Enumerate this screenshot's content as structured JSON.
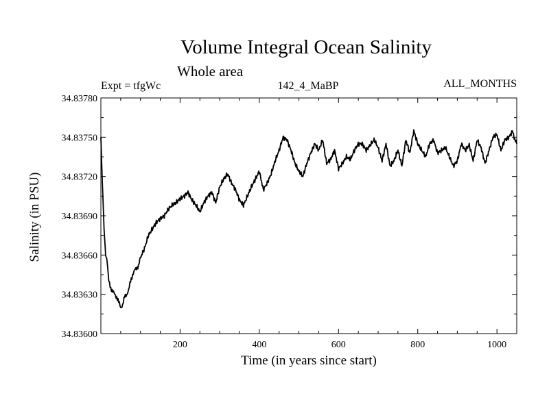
{
  "header": {
    "title": "Volume Integral Ocean Salinity",
    "subtitle": "Whole area",
    "experiment": "Expt = tfgWc",
    "run": "142_4_MaBP",
    "months": "ALL_MONTHS"
  },
  "chart_data": {
    "type": "line",
    "title": "Volume Integral Ocean Salinity",
    "subtitle": "Whole area",
    "xlabel": "Time (in years since start)",
    "ylabel": "Salinity (in PSU)",
    "xlim": [
      0,
      1050
    ],
    "ylim": [
      34.836,
      34.8378
    ],
    "xticks": [
      200,
      400,
      600,
      800,
      1000
    ],
    "yticks": [
      34.836,
      34.8363,
      34.8366,
      34.8369,
      34.8372,
      34.8375,
      34.8378
    ],
    "ytick_labels": [
      "34.83600",
      "34.83630",
      "34.83660",
      "34.83690",
      "34.83720",
      "34.83750",
      "34.83780"
    ],
    "grid": false,
    "series": [
      {
        "name": "salinity",
        "x": [
          0,
          2,
          5,
          8,
          12,
          16,
          20,
          25,
          30,
          35,
          40,
          45,
          50,
          55,
          60,
          65,
          70,
          75,
          80,
          85,
          90,
          95,
          100,
          110,
          120,
          130,
          140,
          150,
          160,
          170,
          180,
          190,
          200,
          210,
          220,
          230,
          240,
          250,
          260,
          270,
          280,
          290,
          300,
          310,
          320,
          330,
          340,
          350,
          360,
          370,
          380,
          390,
          400,
          410,
          420,
          430,
          440,
          450,
          460,
          470,
          480,
          490,
          500,
          510,
          520,
          530,
          540,
          550,
          560,
          570,
          580,
          590,
          600,
          610,
          620,
          630,
          640,
          650,
          660,
          670,
          680,
          690,
          700,
          710,
          720,
          730,
          740,
          750,
          760,
          770,
          780,
          790,
          800,
          810,
          820,
          830,
          840,
          850,
          860,
          870,
          880,
          890,
          900,
          910,
          920,
          930,
          940,
          950,
          960,
          970,
          980,
          990,
          1000,
          1010,
          1020,
          1030,
          1040,
          1045,
          1050
        ],
        "values": [
          34.8375,
          34.8373,
          34.83705,
          34.8368,
          34.8366,
          34.83655,
          34.8364,
          34.83635,
          34.83632,
          34.8363,
          34.83628,
          34.83624,
          34.8362,
          34.83622,
          34.83628,
          34.8363,
          34.83633,
          34.8364,
          34.83645,
          34.83648,
          34.8365,
          34.83652,
          34.83658,
          34.83665,
          34.83675,
          34.8368,
          34.83685,
          34.83688,
          34.8369,
          34.83695,
          34.83698,
          34.837,
          34.83703,
          34.83705,
          34.83708,
          34.83702,
          34.83698,
          34.83693,
          34.837,
          34.83705,
          34.83708,
          34.837,
          34.83712,
          34.83718,
          34.83722,
          34.83715,
          34.8371,
          34.83702,
          34.83698,
          34.83705,
          34.83712,
          34.83718,
          34.83724,
          34.8371,
          34.83715,
          34.83722,
          34.83732,
          34.8374,
          34.8375,
          34.83748,
          34.8374,
          34.8373,
          34.83724,
          34.8372,
          34.8373,
          34.83738,
          34.83745,
          34.8374,
          34.83748,
          34.8373,
          34.83733,
          34.8374,
          34.83726,
          34.8373,
          34.83735,
          34.83733,
          34.8374,
          34.83745,
          34.83745,
          34.8374,
          34.83744,
          34.83748,
          34.83742,
          34.83732,
          34.83745,
          34.83728,
          34.83732,
          34.8374,
          34.83728,
          34.83748,
          34.83738,
          34.83755,
          34.83745,
          34.8374,
          34.83735,
          34.83745,
          34.83748,
          34.83738,
          34.8374,
          34.83742,
          34.83735,
          34.83728,
          34.83732,
          34.83745,
          34.8374,
          34.83744,
          34.83732,
          34.83748,
          34.83742,
          34.8373,
          34.8374,
          34.8375,
          34.83752,
          34.8374,
          34.83748,
          34.8375,
          34.83755,
          34.83748,
          34.83745
        ]
      }
    ]
  }
}
